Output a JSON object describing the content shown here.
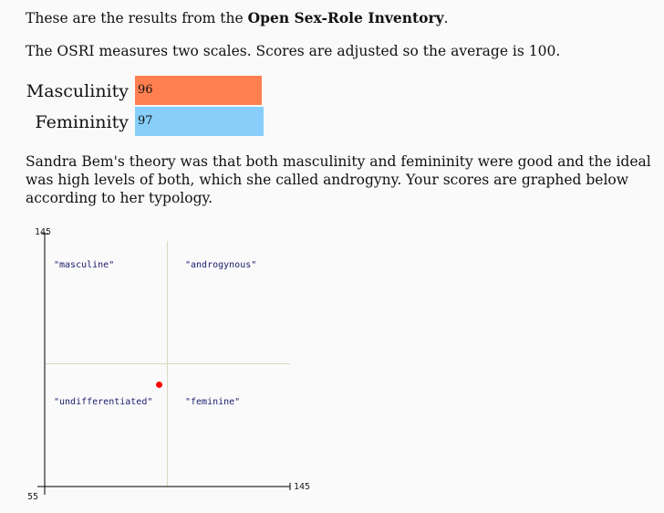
{
  "intro": {
    "prefix": "These are the results from the ",
    "test_name": "Open Sex-Role Inventory",
    "suffix": "."
  },
  "scales_note": "The OSRI measures two scales. Scores are adjusted so the average is 100.",
  "scores": [
    {
      "label": "Masculinity",
      "value": "96",
      "color": "#ff7f50"
    },
    {
      "label": "Femininity",
      "value": "97",
      "color": "#87cefa"
    }
  ],
  "theory_text": "Sandra Bem's theory was that both masculinity and femininity were good and the ideal was high levels of both, which she called androgyny. Your scores are graphed below according to her typology.",
  "chart_data": {
    "type": "scatter",
    "xlim": [
      55,
      145
    ],
    "ylim": [
      55,
      145
    ],
    "x_tick_labels": [
      "145"
    ],
    "y_tick_labels": [
      "145",
      "55"
    ],
    "divider": 100,
    "quadrant_labels": [
      "\"masculine\"",
      "\"androgynous\"",
      "\"undifferentiated\"",
      "\"feminine\""
    ],
    "points": [
      {
        "x": 97,
        "y": 96
      }
    ],
    "point_color": "#ff0000",
    "divider_color": "#d6dcc0"
  }
}
